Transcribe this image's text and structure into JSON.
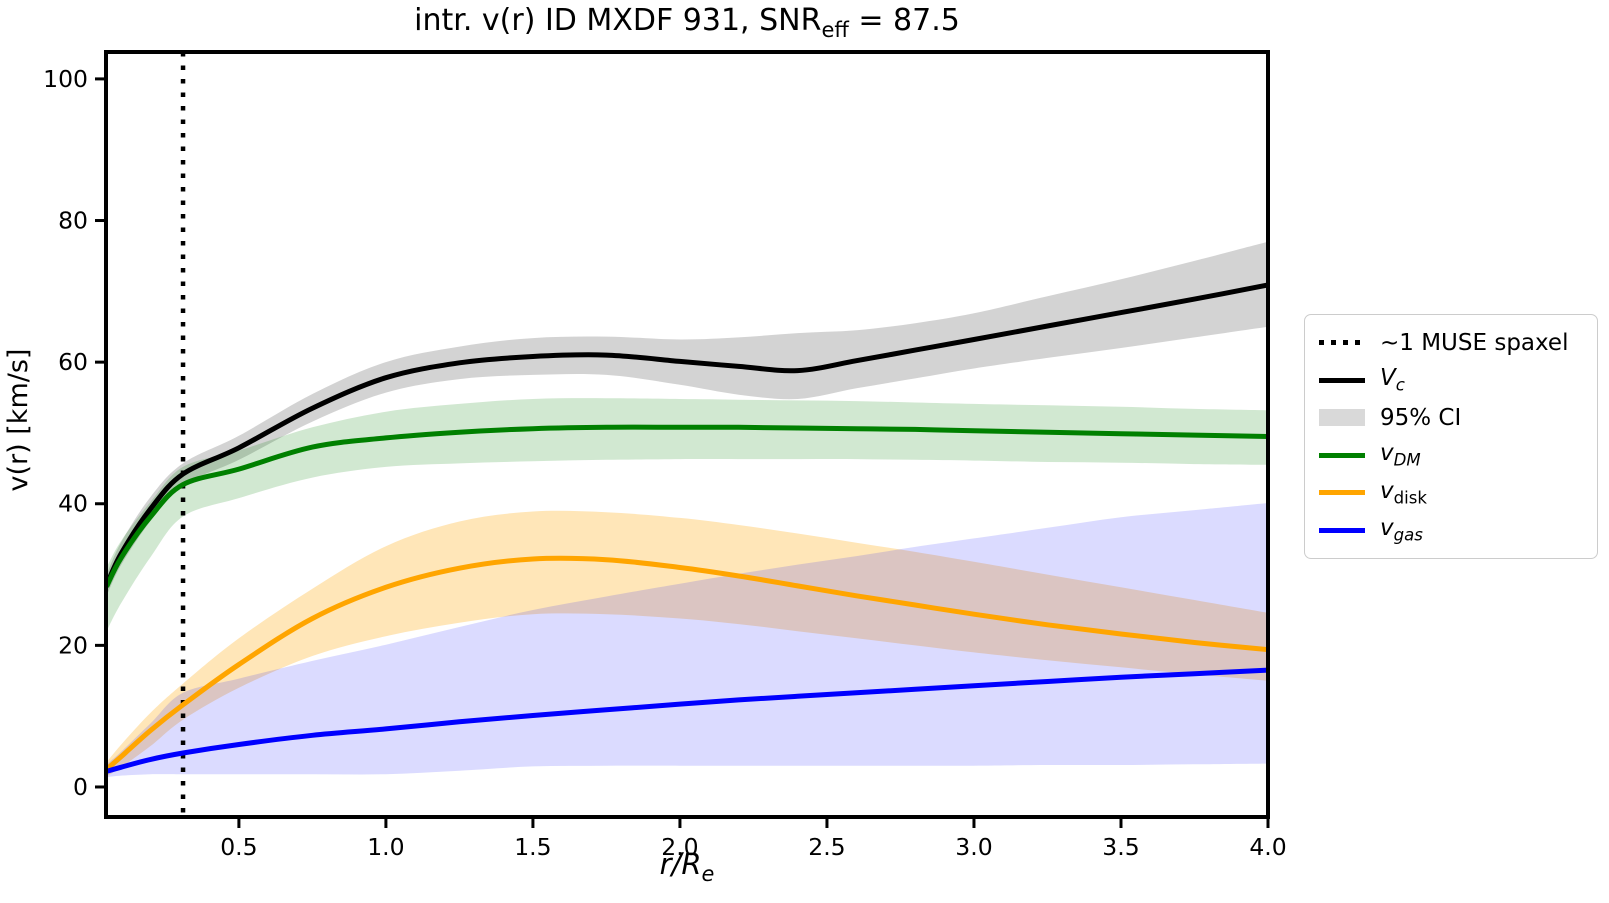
{
  "chart_data": {
    "type": "line",
    "title": {
      "pre": "intr. v(r) ID MXDF 931, SNR",
      "sub": "eff",
      "post": " = 87.5"
    },
    "xlabel": {
      "main": "r/R",
      "sub": "e"
    },
    "ylabel": "v(r) [km/s]",
    "grid": false,
    "legend_position": "outside-right",
    "axis": {
      "xlim": [
        0.048,
        4.0
      ],
      "ylim": [
        -4.24,
        103.8
      ],
      "xticks": [
        0.5,
        1.0,
        1.5,
        2.0,
        2.5,
        3.0,
        3.5,
        4.0
      ],
      "xtick_labels": [
        "0.5",
        "1.0",
        "1.5",
        "2.0",
        "2.5",
        "3.0",
        "3.5",
        "4.0"
      ],
      "yticks": [
        0,
        20,
        40,
        60,
        80,
        100
      ],
      "ytick_labels": [
        "0",
        "20",
        "40",
        "60",
        "80",
        "100"
      ]
    },
    "vline": {
      "x": 0.31,
      "style": "dotted",
      "color": "#000000",
      "label": "~1 MUSE spaxel"
    },
    "x": [
      0.05,
      0.1,
      0.2,
      0.31,
      0.5,
      0.75,
      1.0,
      1.25,
      1.5,
      1.75,
      2.0,
      2.2,
      2.4,
      2.6,
      2.8,
      3.0,
      3.25,
      3.5,
      3.75,
      4.0
    ],
    "series": [
      {
        "name": "Vc",
        "color": "#000000",
        "linewidth": 5,
        "values": [
          28.5,
          33.0,
          39.3,
          44.2,
          47.9,
          53.5,
          57.8,
          59.9,
          60.8,
          61.0,
          60.1,
          59.4,
          58.8,
          60.2,
          61.7,
          63.2,
          65.1,
          67.0,
          68.9,
          70.9
        ],
        "ci95": {
          "fill": "rgba(128,128,128,0.35)",
          "lo": [
            27.0,
            31.4,
            37.6,
            42.6,
            46.2,
            51.6,
            55.7,
            57.6,
            58.2,
            58.2,
            56.8,
            55.4,
            54.8,
            56.3,
            57.7,
            59.1,
            60.6,
            62.0,
            63.5,
            65.0
          ],
          "hi": [
            30.0,
            34.6,
            41.0,
            45.7,
            49.6,
            55.5,
            60.0,
            62.2,
            63.4,
            63.6,
            63.2,
            63.5,
            64.1,
            64.5,
            65.5,
            66.9,
            69.3,
            71.7,
            74.3,
            77.0
          ]
        }
      },
      {
        "name": "vDM",
        "color": "#008000",
        "linewidth": 5,
        "values": [
          28.3,
          32.4,
          38.2,
          42.7,
          44.9,
          48.0,
          49.3,
          50.1,
          50.6,
          50.8,
          50.8,
          50.8,
          50.7,
          50.6,
          50.5,
          50.3,
          50.1,
          49.9,
          49.7,
          49.5
        ],
        "ci95": {
          "fill": "rgba(0,128,0,0.18)",
          "lo": [
            22.0,
            26.0,
            32.5,
            38.2,
            40.8,
            43.7,
            45.2,
            45.7,
            46.0,
            46.2,
            46.3,
            46.3,
            46.3,
            46.3,
            46.2,
            46.1,
            45.9,
            45.8,
            45.6,
            45.5
          ],
          "hi": [
            31.0,
            34.8,
            40.3,
            45.2,
            47.5,
            50.8,
            53.0,
            54.1,
            54.8,
            54.9,
            54.8,
            54.7,
            54.6,
            54.5,
            54.3,
            54.1,
            53.9,
            53.7,
            53.4,
            53.2
          ]
        }
      },
      {
        "name": "vdisk",
        "color": "#FFA500",
        "linewidth": 5,
        "values": [
          2.5,
          4.3,
          8.0,
          11.6,
          17.3,
          23.8,
          28.2,
          30.9,
          32.2,
          32.1,
          31.0,
          29.8,
          28.4,
          27.0,
          25.7,
          24.4,
          22.9,
          21.6,
          20.4,
          19.4
        ],
        "ci95": {
          "fill": "rgba(255,165,0,0.28)",
          "lo": [
            1.5,
            2.8,
            5.8,
            9.5,
            14.0,
            18.5,
            21.3,
            23.2,
            24.4,
            24.4,
            23.8,
            23.0,
            22.0,
            21.0,
            20.0,
            19.0,
            17.9,
            16.9,
            15.9,
            15.0
          ],
          "hi": [
            3.5,
            6.0,
            10.5,
            14.6,
            21.0,
            28.0,
            34.0,
            37.5,
            38.9,
            38.8,
            38.0,
            37.0,
            35.8,
            34.5,
            33.2,
            31.8,
            30.0,
            28.2,
            26.4,
            24.6
          ]
        }
      },
      {
        "name": "vgas",
        "color": "#0000FF",
        "linewidth": 5,
        "values": [
          2.2,
          2.8,
          3.9,
          4.8,
          6.0,
          7.3,
          8.2,
          9.2,
          10.1,
          10.9,
          11.7,
          12.3,
          12.8,
          13.3,
          13.8,
          14.3,
          14.9,
          15.5,
          16.0,
          16.5
        ],
        "ci95": {
          "fill": "rgba(0,0,255,0.14)",
          "lo": [
            1.4,
            1.6,
            1.8,
            1.8,
            1.8,
            1.8,
            1.8,
            2.3,
            2.9,
            3.0,
            3.0,
            3.0,
            3.0,
            3.0,
            3.0,
            3.0,
            3.1,
            3.1,
            3.2,
            3.3
          ],
          "hi": [
            3.2,
            5.0,
            9.0,
            13.3,
            15.3,
            17.8,
            20.1,
            22.6,
            25.0,
            26.9,
            28.7,
            30.1,
            31.4,
            32.6,
            33.9,
            35.1,
            36.6,
            38.1,
            39.1,
            40.1
          ]
        }
      }
    ],
    "legend": {
      "items": [
        {
          "key": "muse-spaxel",
          "swatch": "dotted",
          "color": "#000000",
          "main": "~1 MUSE spaxel",
          "sub": ""
        },
        {
          "key": "Vc",
          "swatch": "line",
          "color": "#000000",
          "main": "V",
          "sub": "c"
        },
        {
          "key": "ci95",
          "swatch": "patch",
          "color": "#d9d9d9",
          "main": "95% CI",
          "sub": ""
        },
        {
          "key": "vDM",
          "swatch": "line",
          "color": "#008000",
          "main": "v",
          "sub": "DM"
        },
        {
          "key": "vdisk",
          "swatch": "line",
          "color": "#FFA500",
          "main": "v",
          "sub": "disk"
        },
        {
          "key": "vgas",
          "swatch": "line",
          "color": "#0000FF",
          "main": "v",
          "sub": "gas"
        }
      ]
    }
  }
}
